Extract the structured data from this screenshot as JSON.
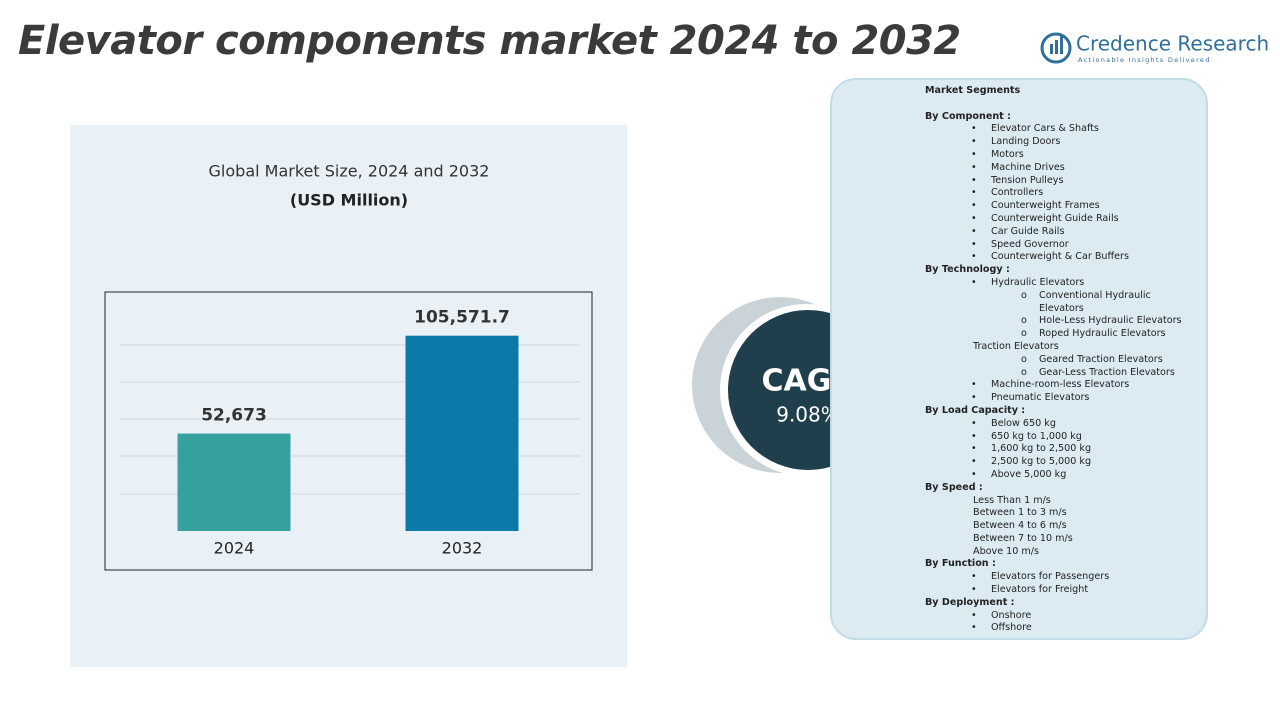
{
  "header": {
    "title": "Elevator components market 2024 to 2032",
    "logo_name": "Credence Research",
    "logo_tagline": "Actionable Insights Delivered"
  },
  "chart_data": {
    "type": "bar",
    "title": "Global Market Size, 2024 and 2032",
    "subtitle": "(USD Million)",
    "categories": [
      "2024",
      "2032"
    ],
    "values": [
      52673,
      105571.7
    ],
    "value_labels": [
      "52,673",
      "105,571.7"
    ],
    "colors": [
      "#35a19f",
      "#0b7aa8"
    ],
    "ylim": [
      0,
      120000
    ]
  },
  "cagr": {
    "label": "CAGR",
    "value": "9.08%"
  },
  "segments": {
    "title": "Market Segments",
    "groups": [
      {
        "heading": "By Component :",
        "items": [
          {
            "label": "Elevator Cars & Shafts"
          },
          {
            "label": "Landing Doors"
          },
          {
            "label": "Motors"
          },
          {
            "label": "Machine Drives"
          },
          {
            "label": "Tension Pulleys"
          },
          {
            "label": "Controllers"
          },
          {
            "label": "Counterweight Frames"
          },
          {
            "label": "Counterweight Guide Rails"
          },
          {
            "label": "Car Guide Rails"
          },
          {
            "label": "Speed Governor"
          },
          {
            "label": "Counterweight & Car Buffers"
          }
        ]
      },
      {
        "heading": "By Technology :",
        "items": [
          {
            "label": "Hydraulic Elevators",
            "sub": [
              "Conventional Hydraulic Elevators",
              "Hole-Less Hydraulic Elevators",
              "Roped Hydraulic Elevators"
            ]
          },
          {
            "label": "Traction Elevators",
            "bulleted": false,
            "sub": [
              "Geared Traction Elevators",
              "Gear-Less Traction Elevators"
            ]
          },
          {
            "label": "Machine-room-less Elevators"
          },
          {
            "label": "Pneumatic Elevators"
          }
        ]
      },
      {
        "heading": "By Load Capacity :",
        "items": [
          {
            "label": "Below 650 kg"
          },
          {
            "label": "650 kg to 1,000 kg"
          },
          {
            "label": "1,600 kg to 2,500 kg"
          },
          {
            "label": "2,500 kg to 5,000 kg"
          },
          {
            "label": "Above 5,000 kg"
          }
        ]
      },
      {
        "heading": "By Speed :",
        "items": [
          {
            "label": "Less Than 1 m/s",
            "bulleted": false
          },
          {
            "label": "Between 1 to 3 m/s",
            "bulleted": false
          },
          {
            "label": "Between 4 to 6 m/s",
            "bulleted": false
          },
          {
            "label": "Between 7 to 10 m/s",
            "bulleted": false
          },
          {
            "label": "Above 10 m/s",
            "bulleted": false
          }
        ]
      },
      {
        "heading": "By Function :",
        "items": [
          {
            "label": "Elevators for Passengers"
          },
          {
            "label": "Elevators for Freight"
          }
        ]
      },
      {
        "heading": "By Deployment :",
        "items": [
          {
            "label": "Onshore"
          },
          {
            "label": "Offshore"
          }
        ]
      }
    ]
  }
}
